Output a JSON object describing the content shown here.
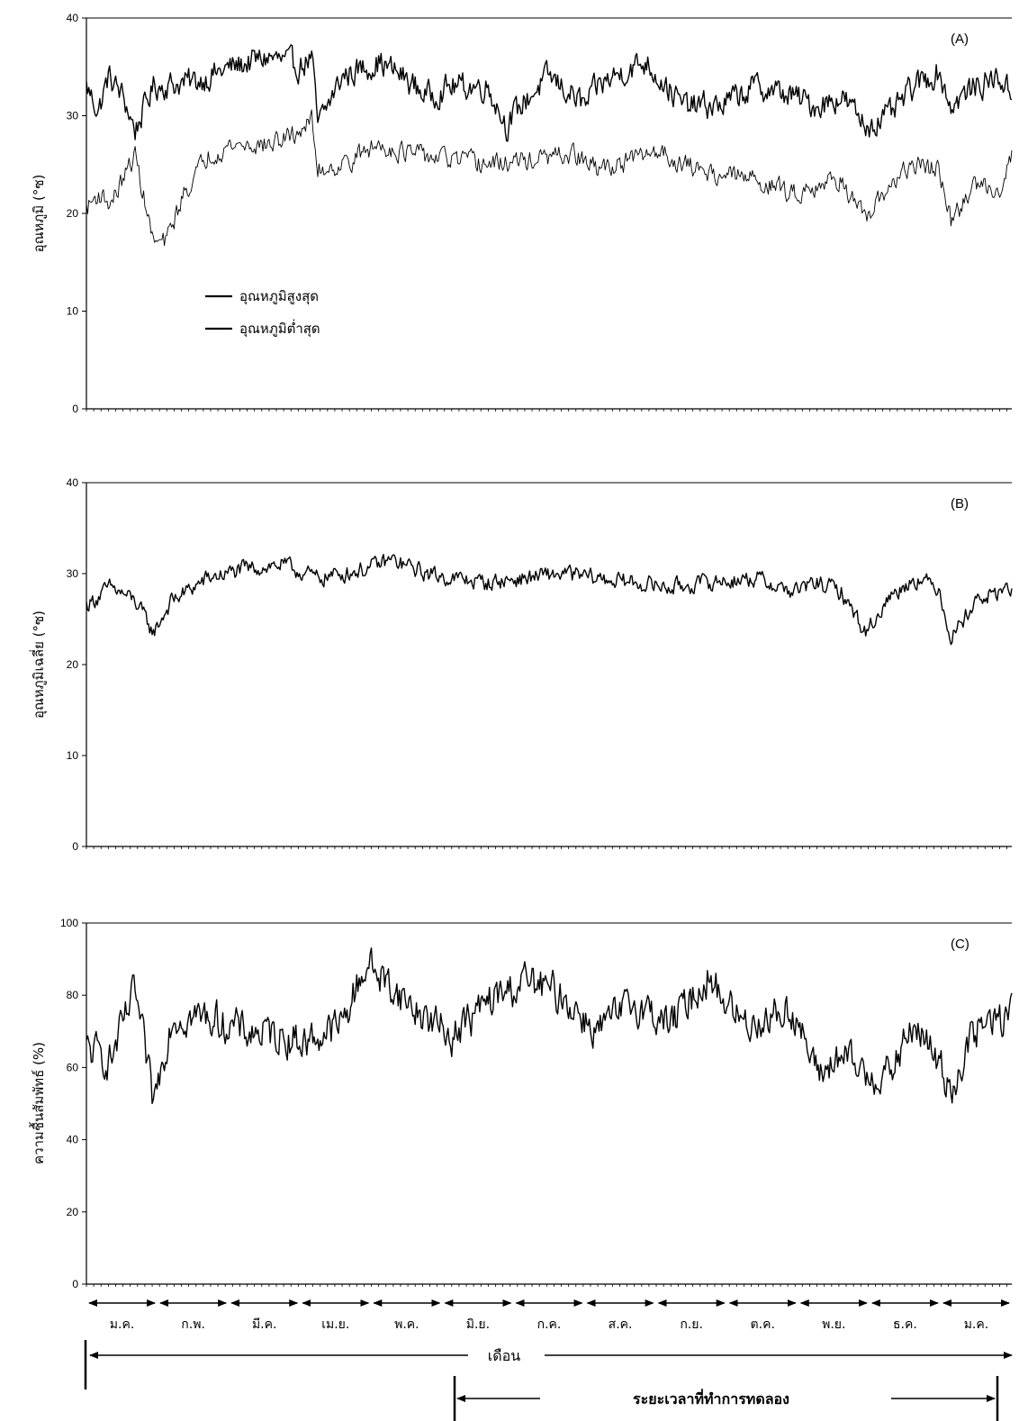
{
  "chart_data": [
    {
      "type": "line",
      "panel_label": "(A)",
      "ylabel": "อุณหภูมิ (°ซ)",
      "ylim": [
        0,
        40
      ],
      "yticks": [
        0,
        10,
        20,
        30,
        40
      ],
      "legend": [
        "อุณหภูมิสูงสุด",
        "อุณหภูมิต่ำสุด"
      ],
      "series": [
        {
          "name": "อุณหภูมิสูงสุด",
          "anchors": [
            [
              0,
              33
            ],
            [
              10,
              30.5
            ],
            [
              18,
              34
            ],
            [
              30,
              32
            ],
            [
              40,
              28.5
            ],
            [
              55,
              33
            ],
            [
              90,
              33.5
            ],
            [
              120,
              35
            ],
            [
              150,
              36
            ],
            [
              175,
              35
            ],
            [
              185,
              36
            ],
            [
              190,
              29
            ],
            [
              210,
              34
            ],
            [
              240,
              35.5
            ],
            [
              260,
              34
            ],
            [
              280,
              32
            ],
            [
              300,
              33
            ],
            [
              330,
              33
            ],
            [
              345,
              29
            ],
            [
              360,
              31.5
            ],
            [
              380,
              34
            ],
            [
              410,
              31
            ],
            [
              420,
              33
            ],
            [
              440,
              34.5
            ],
            [
              460,
              35.5
            ],
            [
              490,
              31
            ],
            [
              520,
              31
            ],
            [
              550,
              33
            ],
            [
              580,
              32
            ],
            [
              600,
              31
            ],
            [
              620,
              32
            ],
            [
              640,
              29
            ],
            [
              660,
              30
            ],
            [
              680,
              33
            ],
            [
              700,
              34.5
            ],
            [
              710,
              31
            ],
            [
              730,
              33
            ],
            [
              750,
              34
            ],
            [
              760,
              32
            ]
          ],
          "noise": 1.2
        },
        {
          "name": "อุณหภูมิต่ำสุด",
          "anchors": [
            [
              0,
              20.5
            ],
            [
              10,
              22
            ],
            [
              20,
              21
            ],
            [
              40,
              26
            ],
            [
              55,
              17
            ],
            [
              65,
              17
            ],
            [
              80,
              22
            ],
            [
              100,
              26
            ],
            [
              120,
              27
            ],
            [
              150,
              27
            ],
            [
              170,
              28
            ],
            [
              185,
              29.5
            ],
            [
              190,
              24.5
            ],
            [
              210,
              25
            ],
            [
              240,
              27
            ],
            [
              270,
              26
            ],
            [
              300,
              25.5
            ],
            [
              330,
              25
            ],
            [
              370,
              25.5
            ],
            [
              400,
              26
            ],
            [
              420,
              24.5
            ],
            [
              450,
              25.5
            ],
            [
              470,
              26.5
            ],
            [
              490,
              25
            ],
            [
              520,
              24
            ],
            [
              550,
              23.5
            ],
            [
              580,
              22
            ],
            [
              600,
              23
            ],
            [
              620,
              23.5
            ],
            [
              640,
              19
            ],
            [
              660,
              23
            ],
            [
              680,
              25
            ],
            [
              700,
              24.5
            ],
            [
              710,
              19
            ],
            [
              730,
              23
            ],
            [
              750,
              22.5
            ],
            [
              760,
              26
            ]
          ],
          "noise": 0.9
        }
      ]
    },
    {
      "type": "line",
      "panel_label": "(B)",
      "ylabel": "อุณหภูมิเฉลี่ย (°ซ)",
      "ylim": [
        0,
        40
      ],
      "yticks": [
        0,
        10,
        20,
        30,
        40
      ],
      "series": [
        {
          "name": "",
          "anchors": [
            [
              0,
              26.5
            ],
            [
              20,
              28.5
            ],
            [
              40,
              27
            ],
            [
              55,
              23.5
            ],
            [
              70,
              27
            ],
            [
              100,
              29.5
            ],
            [
              130,
              30.5
            ],
            [
              160,
              31
            ],
            [
              190,
              29.5
            ],
            [
              210,
              30
            ],
            [
              230,
              30.5
            ],
            [
              250,
              31.5
            ],
            [
              280,
              30
            ],
            [
              300,
              29.5
            ],
            [
              330,
              29
            ],
            [
              360,
              29.5
            ],
            [
              390,
              30
            ],
            [
              420,
              29.5
            ],
            [
              450,
              29
            ],
            [
              480,
              28.5
            ],
            [
              510,
              29
            ],
            [
              550,
              29.5
            ],
            [
              580,
              28
            ],
            [
              600,
              29
            ],
            [
              620,
              28
            ],
            [
              640,
              23.5
            ],
            [
              660,
              27.5
            ],
            [
              680,
              29.5
            ],
            [
              700,
              28.5
            ],
            [
              710,
              23
            ],
            [
              730,
              27
            ],
            [
              760,
              28.5
            ]
          ],
          "noise": 0.8
        }
      ]
    },
    {
      "type": "line",
      "panel_label": "(C)",
      "ylabel": "ความชื้นสัมพัทธ์ (%)",
      "ylim": [
        0,
        100
      ],
      "yticks": [
        0,
        20,
        40,
        60,
        80,
        100
      ],
      "series": [
        {
          "name": "",
          "anchors": [
            [
              0,
              65
            ],
            [
              20,
              62
            ],
            [
              40,
              81
            ],
            [
              55,
              50
            ],
            [
              70,
              74
            ],
            [
              100,
              74
            ],
            [
              130,
              70
            ],
            [
              160,
              69
            ],
            [
              180,
              67
            ],
            [
              210,
              72
            ],
            [
              230,
              89
            ],
            [
              270,
              76
            ],
            [
              300,
              69
            ],
            [
              330,
              78
            ],
            [
              360,
              84
            ],
            [
              390,
              80
            ],
            [
              420,
              70
            ],
            [
              450,
              78
            ],
            [
              480,
              72
            ],
            [
              510,
              85
            ],
            [
              540,
              72
            ],
            [
              580,
              76
            ],
            [
              600,
              58
            ],
            [
              620,
              63
            ],
            [
              640,
              58
            ],
            [
              660,
              58
            ],
            [
              680,
              72
            ],
            [
              700,
              61
            ],
            [
              710,
              54
            ],
            [
              730,
              70
            ],
            [
              760,
              75
            ]
          ],
          "noise": 4.5
        }
      ]
    }
  ],
  "x_axis": {
    "month_labels": [
      "ม.ค.",
      "ก.พ.",
      "มี.ค.",
      "เม.ย.",
      "พ.ค.",
      "มิ.ย.",
      "ก.ค.",
      "ส.ค.",
      "ก.ย.",
      "ต.ค.",
      "พ.ย.",
      "ธ.ค.",
      "ม.ค."
    ],
    "xlabel": "เดือน",
    "experiment_period_label": "ระยะเวลาที่ทำการทดลอง"
  }
}
